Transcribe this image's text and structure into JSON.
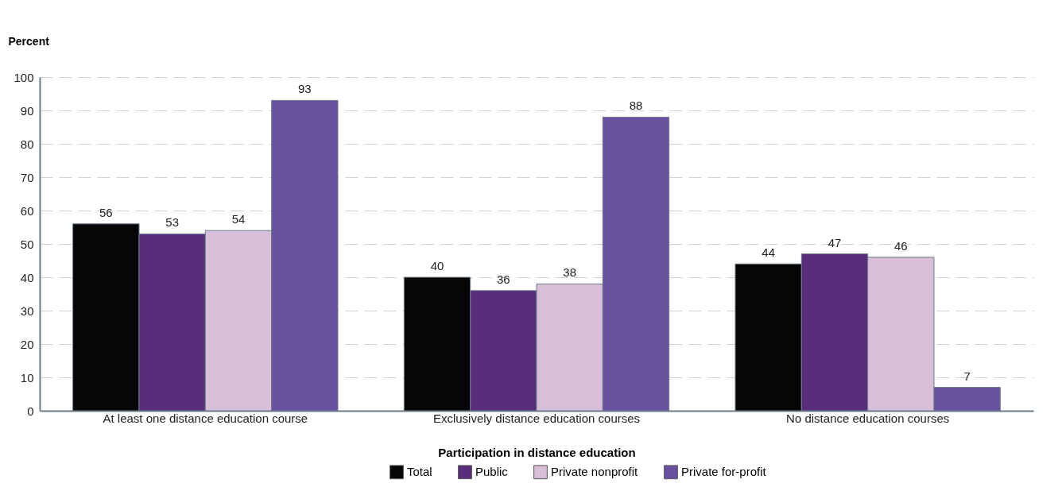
{
  "chart_data": {
    "type": "bar",
    "xlabel": "Participation in distance education",
    "ylabel": "Percent",
    "categories": [
      "At least one distance education course",
      "Exclusively distance education courses",
      "No distance education courses"
    ],
    "series": [
      {
        "name": "Total",
        "color": "#060606",
        "values": [
          56,
          40,
          44
        ]
      },
      {
        "name": "Public",
        "color": "#582d7a",
        "values": [
          53,
          36,
          47
        ]
      },
      {
        "name": "Private nonprofit",
        "color": "#d8bed9",
        "values": [
          54,
          38,
          46
        ]
      },
      {
        "name": "Private for-profit",
        "color": "#6a51a0",
        "values": [
          93,
          88,
          7
        ]
      }
    ],
    "ylim": [
      0,
      100
    ],
    "yticks": [
      0,
      10,
      20,
      30,
      40,
      50,
      60,
      70,
      80,
      90,
      100
    ],
    "grid": "y",
    "legend": "bottom",
    "data_labels": true
  }
}
